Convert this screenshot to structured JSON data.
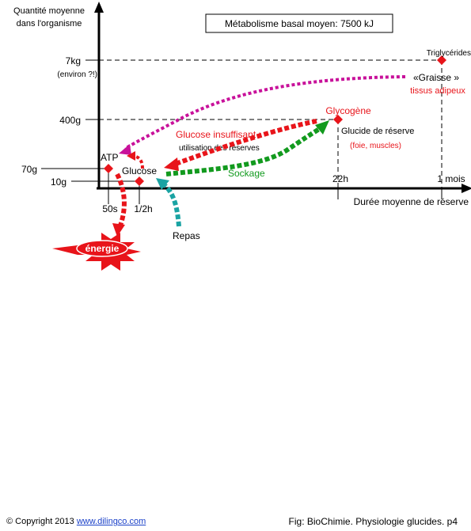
{
  "axis": {
    "y_label_line1": "Quantité moyenne",
    "y_label_line2": "dans l'organisme",
    "x_label": "Durée moyenne de réserve",
    "y_ticks": [
      "7kg",
      "(environ ?!)",
      "400g",
      "70g",
      "10g"
    ],
    "x_ticks": [
      "50s",
      "1/2h",
      "22h",
      "1 mois"
    ]
  },
  "title_box": "Métabolisme basal moyen: 7500 kJ",
  "labels": {
    "atp": "ATP",
    "glucose": "Glucose",
    "repas": "Repas",
    "energie": "énergie",
    "glycogene": "Glycogène",
    "glucide_reserve": "Glucide de réserve",
    "foie_muscles": "(foie, muscles)",
    "triglycerides": "Triglycérides",
    "graisse": "«Graisse »",
    "tissus_adipeux": "tissus adipeux",
    "glucose_insuffisant": "Glucose insuffisant :",
    "utilisation": "utilisation des réserves",
    "stockage": "Sockage"
  },
  "footer": {
    "copyright_symbol": "©",
    "copyright_text": "Copyright 2013",
    "link_text": "www.dilingco.com",
    "fig": "Fig: BioChimie. Physiologie glucides. p4"
  },
  "colors": {
    "red": "#e8141a",
    "green": "#129a1e",
    "teal": "#1aa3a3",
    "magenta": "#c8119a",
    "axis": "#000000"
  }
}
